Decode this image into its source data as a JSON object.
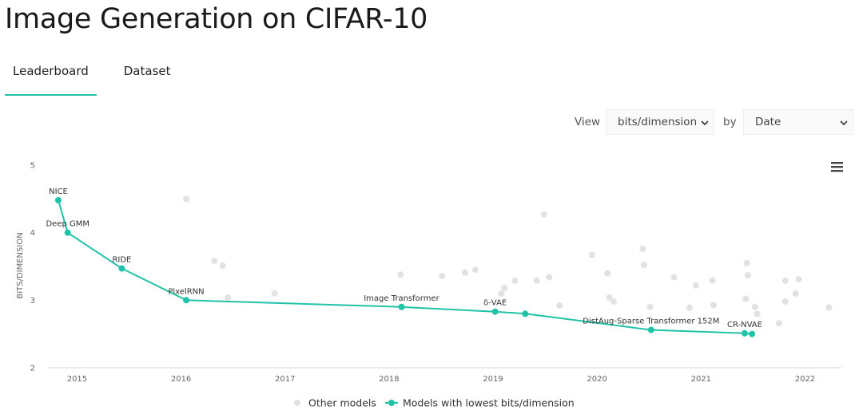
{
  "header": {
    "title": "Image Generation on CIFAR-10"
  },
  "tabs": [
    "Leaderboard",
    "Dataset"
  ],
  "controls": {
    "view_label": "View",
    "metric": "bits/dimension",
    "by_label": "by",
    "sort": "Date"
  },
  "chart_data": {
    "type": "line",
    "y_label": "BITS/DIMENSION",
    "xlim": [
      2014.72,
      2022.35
    ],
    "xticks": [
      2015,
      2016,
      2017,
      2018,
      2019,
      2020,
      2021,
      2022
    ],
    "ylim": [
      2,
      5
    ],
    "yticks": [
      2,
      3,
      4,
      5
    ],
    "grid": false,
    "legend": "bottom",
    "series": [
      {
        "name": "Other models",
        "type": "scatter",
        "color": "#e2e2e2",
        "x": [
          2016.05,
          2016.32,
          2016.4,
          2016.45,
          2016.9,
          2018.11,
          2018.51,
          2018.73,
          2018.83,
          2019.08,
          2019.11,
          2019.21,
          2019.42,
          2019.49,
          2019.54,
          2019.64,
          2019.95,
          2020.1,
          2020.12,
          2020.16,
          2020.44,
          2020.45,
          2020.51,
          2020.74,
          2020.89,
          2020.95,
          2021.11,
          2021.12,
          2021.44,
          2021.45,
          2021.43,
          2021.52,
          2021.54,
          2021.75,
          2021.81,
          2021.81,
          2021.91,
          2021.94,
          2022.23
        ],
        "values": [
          4.5,
          3.58,
          3.51,
          3.04,
          3.1,
          3.38,
          3.36,
          3.41,
          3.45,
          3.1,
          3.18,
          3.29,
          3.29,
          4.27,
          3.34,
          2.92,
          3.67,
          3.4,
          3.04,
          2.98,
          3.76,
          3.52,
          2.9,
          3.34,
          2.89,
          3.22,
          3.29,
          2.93,
          3.55,
          3.37,
          3.02,
          2.9,
          2.8,
          2.66,
          3.29,
          2.98,
          3.1,
          3.31,
          2.89
        ]
      },
      {
        "name": "Models with lowest bits/dimension",
        "type": "line",
        "color": "#21c3a8",
        "x": [
          2014.82,
          2014.91,
          2015.43,
          2016.05,
          2018.12,
          2019.02,
          2019.31,
          2020.52,
          2021.42,
          2021.49
        ],
        "values": [
          4.48,
          4.0,
          3.47,
          3.0,
          2.9,
          2.83,
          2.8,
          2.56,
          2.51,
          2.5
        ],
        "labels": [
          "NICE",
          "Deep GMM",
          "RIDE",
          "PixelRNN",
          "Image Transformer",
          "δ-VAE",
          null,
          "DistAug-Sparse Transformer 152M",
          "CR-NVAE",
          null
        ]
      }
    ]
  }
}
